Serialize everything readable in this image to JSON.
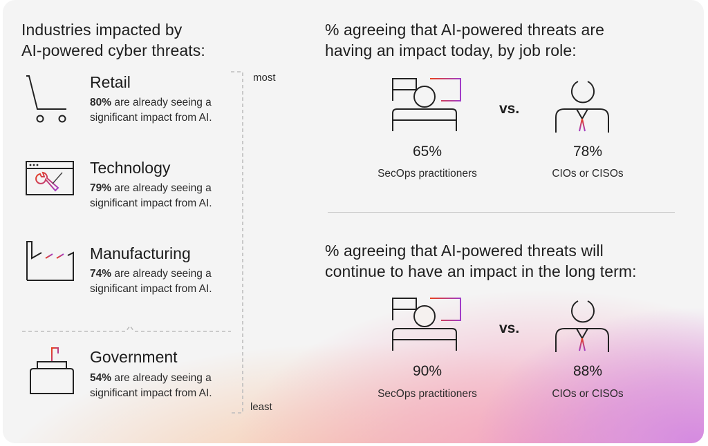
{
  "left": {
    "heading_line1": "Industries impacted by",
    "heading_line2": "AI-powered cyber threats:",
    "industries": [
      {
        "name": "Retail",
        "pct": "80%",
        "desc": " are already seeing a significant impact from AI.",
        "icon": "shopping-cart-icon"
      },
      {
        "name": "Technology",
        "pct": "79%",
        "desc": " are already seeing a significant impact from AI.",
        "icon": "browser-wrench-icon"
      },
      {
        "name": "Manufacturing",
        "pct": "74%",
        "desc": " are already seeing a significant impact from AI.",
        "icon": "factory-icon"
      },
      {
        "name": "Government",
        "pct": "54%",
        "desc": " are already seeing a significant impact from AI.",
        "icon": "ballot-box-icon"
      }
    ],
    "scale_most": "most",
    "scale_least": "least"
  },
  "right": {
    "top": {
      "heading_line1": "% agreeing that AI-powered threats are",
      "heading_line2": "having an impact today, by job role:",
      "left_value": "65%",
      "left_role": "SecOps practitioners",
      "right_value": "78%",
      "right_role": "CIOs or CISOs",
      "vs": "vs."
    },
    "bottom": {
      "heading_line1": "% agreeing that AI-powered threats will",
      "heading_line2": "continue to have an impact in the long term:",
      "left_value": "90%",
      "left_role": "SecOps practitioners",
      "right_value": "88%",
      "right_role": "CIOs or CISOs",
      "vs": "vs."
    }
  },
  "colors": {
    "accent_gradient_start": "#e8401c",
    "accent_gradient_end": "#a03cc8",
    "text": "#1c1c1c",
    "background": "#f4f4f4"
  }
}
